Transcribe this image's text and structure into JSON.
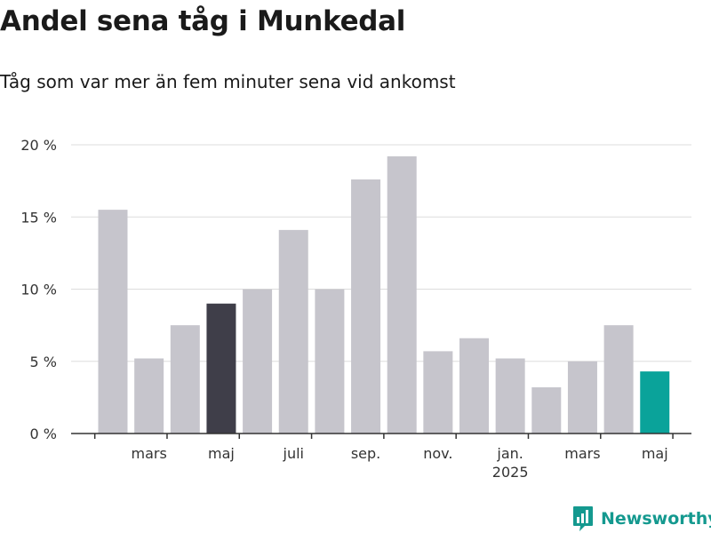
{
  "header": {
    "title": "Andel sena tåg i Munkedal",
    "subtitle": "Tåg som var mer än fem minuter sena vid ankomst"
  },
  "brand": {
    "name": "Newsworthy",
    "color": "#14998f"
  },
  "colors": {
    "bar_default": "#c6c5cc",
    "bar_highlight_dark": "#3f3e49",
    "bar_highlight_current": "#0aa39a",
    "grid": "#dddddd",
    "axis": "#333333"
  },
  "chart_data": {
    "type": "bar",
    "title": "Andel sena tåg i Munkedal",
    "subtitle": "Tåg som var mer än fem minuter sena vid ankomst",
    "categories": [
      "2024-02",
      "2024-03",
      "2024-04",
      "2024-05",
      "2024-06",
      "2024-07",
      "2024-08",
      "2024-09",
      "2024-10",
      "2024-11",
      "2024-12",
      "2025-01",
      "2025-02",
      "2025-03",
      "2025-04",
      "2025-05"
    ],
    "values": [
      15.5,
      5.2,
      7.5,
      9.0,
      10.0,
      14.1,
      10.0,
      17.6,
      19.2,
      5.7,
      6.6,
      5.2,
      3.2,
      5.0,
      7.5,
      4.3
    ],
    "highlight": {
      "2024-05": "dark",
      "2025-05": "current"
    },
    "ylim": [
      0,
      20
    ],
    "yticks": [
      0,
      5,
      10,
      15,
      20
    ],
    "ytick_labels": [
      "0 %",
      "5 %",
      "10 %",
      "15 %",
      "20 %"
    ],
    "xtick_labels": [
      {
        "category": "2024-03",
        "label": "mars"
      },
      {
        "category": "2024-05",
        "label": "maj"
      },
      {
        "category": "2024-07",
        "label": "juli"
      },
      {
        "category": "2024-09",
        "label": "sep."
      },
      {
        "category": "2024-11",
        "label": "nov."
      },
      {
        "category": "2025-01",
        "label": "jan.",
        "sublabel": "2025"
      },
      {
        "category": "2025-03",
        "label": "mars"
      },
      {
        "category": "2025-05",
        "label": "maj"
      }
    ],
    "xlabel": "",
    "ylabel": "",
    "grid": true,
    "legend": "none"
  }
}
